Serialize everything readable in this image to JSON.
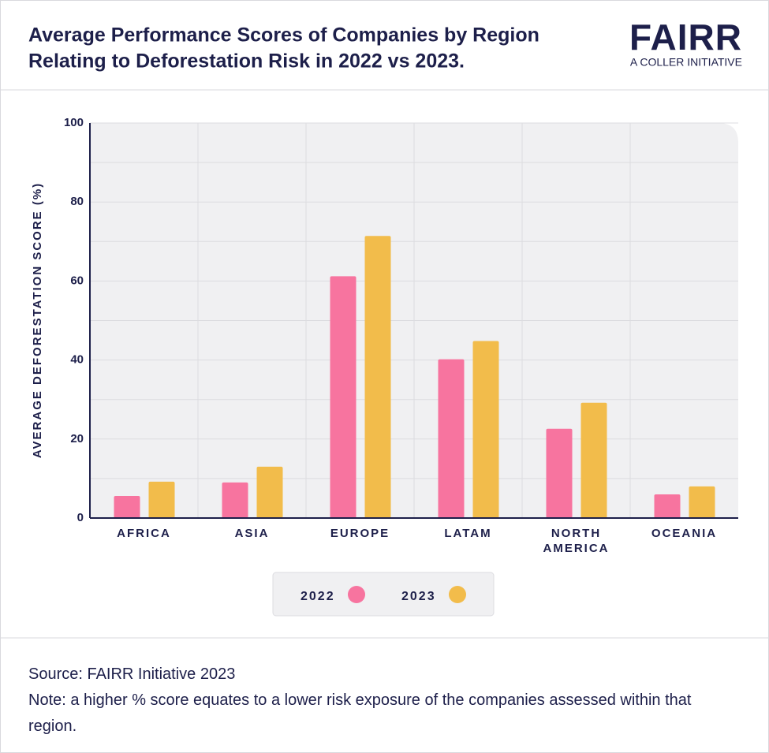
{
  "header": {
    "title_line1": "Average Performance Scores of Companies by Region",
    "title_line2": "Relating to Deforestation Risk in 2022 vs 2023.",
    "logo": "FAIRR",
    "logo_subtitle": "A COLLER INITIATIVE"
  },
  "chart_data": {
    "type": "bar",
    "y_label": "AVERAGE DEFORESTATION SCORE (%)",
    "categories": [
      "AFRICA",
      "ASIA",
      "EUROPE",
      "LATAM",
      "NORTH AMERICA",
      "OCEANIA"
    ],
    "series": [
      {
        "name": "2022",
        "color": "#f7749f",
        "values": [
          5.6,
          9,
          61.2,
          40.2,
          22.6,
          6
        ]
      },
      {
        "name": "2023",
        "color": "#f2bc4b",
        "values": [
          9.2,
          13,
          71.4,
          44.8,
          29.2,
          8
        ]
      }
    ],
    "ylim": [
      0,
      100
    ],
    "yticks": [
      0,
      20,
      40,
      60,
      80,
      100
    ],
    "minor_yticks": [
      10,
      30,
      50,
      70,
      90
    ],
    "grid": true
  },
  "footer": {
    "source": "Source: FAIRR Initiative 2023",
    "note": "Note: a higher % score equates to a lower risk exposure of the companies assessed within that region."
  }
}
